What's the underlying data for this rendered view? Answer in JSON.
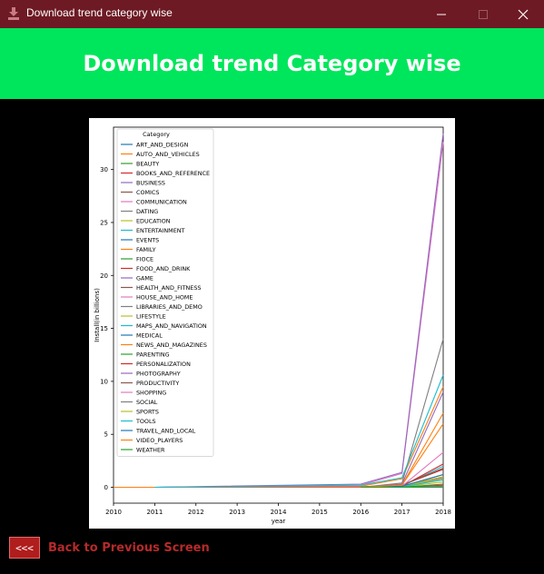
{
  "window": {
    "title": "Download trend category wise"
  },
  "header": {
    "title": "Download trend Category wise"
  },
  "footer": {
    "back_button": "<<<",
    "back_label": "Back to Previous Screen"
  },
  "colors": {
    "titlebar": "#6d1a24",
    "header": "#00e65c",
    "background": "#000000",
    "back_button": "#b01d1d"
  },
  "chart_data": {
    "type": "line",
    "xlabel": "year",
    "ylabel": "Install(in billions)",
    "xlim": [
      2010,
      2018
    ],
    "ylim": [
      -1.5,
      34
    ],
    "x_ticks": [
      "2010",
      "2011",
      "2012",
      "2013",
      "2014",
      "2015",
      "2016",
      "2017",
      "2018"
    ],
    "y_ticks": [
      "0",
      "5",
      "10",
      "15",
      "20",
      "25",
      "30"
    ],
    "legend_title": "Category",
    "legend_position": "upper-left",
    "series": [
      {
        "name": "ART_AND_DESIGN",
        "color": "#1f77b4",
        "x": [
          2011,
          2016,
          2017,
          2018
        ],
        "y": [
          0,
          0,
          0.02,
          0.12
        ]
      },
      {
        "name": "AUTO_AND_VEHICLES",
        "color": "#ff7f0e",
        "x": [
          2010,
          2011,
          2016,
          2017,
          2018
        ],
        "y": [
          0,
          0,
          0.01,
          0.03,
          0.05
        ]
      },
      {
        "name": "BEAUTY",
        "color": "#2ca02c",
        "x": [
          2016,
          2017,
          2018
        ],
        "y": [
          0,
          0.01,
          0.03
        ]
      },
      {
        "name": "BOOKS_AND_REFERENCE",
        "color": "#d62728",
        "x": [
          2011,
          2016,
          2017,
          2018
        ],
        "y": [
          0,
          0.05,
          0.2,
          1.7
        ]
      },
      {
        "name": "BUSINESS",
        "color": "#9467bd",
        "x": [
          2011,
          2016,
          2017,
          2018
        ],
        "y": [
          0,
          0.03,
          0.1,
          0.9
        ]
      },
      {
        "name": "COMICS",
        "color": "#8c564b",
        "x": [
          2016,
          2017,
          2018
        ],
        "y": [
          0,
          0.01,
          0.04
        ]
      },
      {
        "name": "COMMUNICATION",
        "color": "#e377c2",
        "x": [
          2011,
          2016,
          2017,
          2018
        ],
        "y": [
          0,
          0.2,
          1.3,
          32.6
        ]
      },
      {
        "name": "DATING",
        "color": "#7f7f7f",
        "x": [
          2016,
          2017,
          2018
        ],
        "y": [
          0,
          0.01,
          0.1
        ]
      },
      {
        "name": "EDUCATION",
        "color": "#bcbd22",
        "x": [
          2016,
          2017,
          2018
        ],
        "y": [
          0,
          0.05,
          0.8
        ]
      },
      {
        "name": "ENTERTAINMENT",
        "color": "#17becf",
        "x": [
          2016,
          2017,
          2018
        ],
        "y": [
          0,
          0.1,
          2.0
        ]
      },
      {
        "name": "EVENTS",
        "color": "#1f77b4",
        "x": [
          2016,
          2017,
          2018
        ],
        "y": [
          0,
          0.001,
          0.01
        ]
      },
      {
        "name": "FAMILY",
        "color": "#ff7f0e",
        "x": [
          2011,
          2016,
          2017,
          2018
        ],
        "y": [
          0,
          0.1,
          0.8,
          9.5
        ]
      },
      {
        "name": "FIOCE",
        "color": "#2ca02c",
        "x": [
          2016,
          2017,
          2018
        ],
        "y": [
          0,
          0.001,
          0.01
        ]
      },
      {
        "name": "FOOD_AND_DRINK",
        "color": "#d62728",
        "x": [
          2016,
          2017,
          2018
        ],
        "y": [
          0,
          0.01,
          0.2
        ]
      },
      {
        "name": "GAME",
        "color": "#9467bd",
        "x": [
          2011,
          2016,
          2017,
          2018
        ],
        "y": [
          0,
          0.3,
          1.4,
          33.4
        ]
      },
      {
        "name": "HEALTH_AND_FITNESS",
        "color": "#8c564b",
        "x": [
          2016,
          2017,
          2018
        ],
        "y": [
          0,
          0.05,
          1.2
        ]
      },
      {
        "name": "HOUSE_AND_HOME",
        "color": "#e377c2",
        "x": [
          2016,
          2017,
          2018
        ],
        "y": [
          0,
          0.01,
          0.1
        ]
      },
      {
        "name": "LIBRARIES_AND_DEMO",
        "color": "#7f7f7f",
        "x": [
          2016,
          2017,
          2018
        ],
        "y": [
          0,
          0.005,
          0.05
        ]
      },
      {
        "name": "LIFESTYLE",
        "color": "#bcbd22",
        "x": [
          2016,
          2017,
          2018
        ],
        "y": [
          0,
          0.05,
          0.5
        ]
      },
      {
        "name": "MAPS_AND_NAVIGATION",
        "color": "#17becf",
        "x": [
          2016,
          2017,
          2018
        ],
        "y": [
          0,
          0.05,
          0.7
        ]
      },
      {
        "name": "MEDICAL",
        "color": "#1f77b4",
        "x": [
          2016,
          2017,
          2018
        ],
        "y": [
          0,
          0.005,
          0.04
        ]
      },
      {
        "name": "NEWS_AND_MAGAZINES",
        "color": "#ff7f0e",
        "x": [
          2016,
          2017,
          2018
        ],
        "y": [
          0,
          0.2,
          7.0
        ]
      },
      {
        "name": "PARENTING",
        "color": "#2ca02c",
        "x": [
          2016,
          2017,
          2018
        ],
        "y": [
          0,
          0.005,
          0.03
        ]
      },
      {
        "name": "PERSONALIZATION",
        "color": "#d62728",
        "x": [
          2016,
          2017,
          2018
        ],
        "y": [
          0,
          0.1,
          2.2
        ]
      },
      {
        "name": "PHOTOGRAPHY",
        "color": "#9467bd",
        "x": [
          2016,
          2017,
          2018
        ],
        "y": [
          0,
          0.3,
          9.0
        ]
      },
      {
        "name": "PRODUCTIVITY",
        "color": "#8c564b",
        "x": [
          2016,
          2017,
          2018
        ],
        "y": [
          0,
          0.2,
          1.8
        ]
      },
      {
        "name": "SHOPPING",
        "color": "#e377c2",
        "x": [
          2016,
          2017,
          2018
        ],
        "y": [
          0,
          0.1,
          3.3
        ]
      },
      {
        "name": "SOCIAL",
        "color": "#7f7f7f",
        "x": [
          2016,
          2017,
          2018
        ],
        "y": [
          0,
          0.4,
          14.0
        ]
      },
      {
        "name": "SPORTS",
        "color": "#bcbd22",
        "x": [
          2016,
          2017,
          2018
        ],
        "y": [
          0,
          0.1,
          1.0
        ]
      },
      {
        "name": "TOOLS",
        "color": "#17becf",
        "x": [
          2011,
          2016,
          2017,
          2018
        ],
        "y": [
          0,
          0.2,
          0.9,
          10.6
        ]
      },
      {
        "name": "TRAVEL_AND_LOCAL",
        "color": "#1f77b4",
        "x": [
          2016,
          2017,
          2018
        ],
        "y": [
          0,
          0.1,
          1.2
        ]
      },
      {
        "name": "VIDEO_PLAYERS",
        "color": "#ff7f0e",
        "x": [
          2016,
          2017,
          2018
        ],
        "y": [
          0,
          0.2,
          6.0
        ]
      },
      {
        "name": "WEATHER",
        "color": "#2ca02c",
        "x": [
          2016,
          2017,
          2018
        ],
        "y": [
          0,
          0.01,
          0.3
        ]
      }
    ]
  }
}
